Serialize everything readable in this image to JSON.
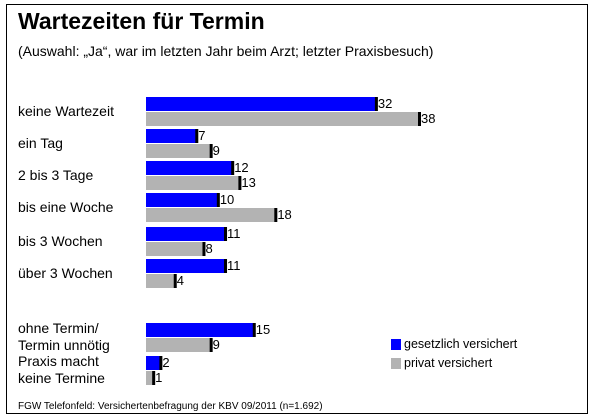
{
  "chart_data": {
    "type": "bar",
    "orientation": "horizontal",
    "title": "Wartezeiten für Termin",
    "subtitle": "(Auswahl: „Ja“, war im letzten Jahr beim Arzt; letzter Praxisbesuch)",
    "source": "FGW Telefonfeld: Versichertenbefragung der KBV 09/2011 (n=1.692)",
    "categories": [
      [
        "keine Wartezeit"
      ],
      [
        "ein Tag"
      ],
      [
        "2 bis 3 Tage"
      ],
      [
        "bis eine Woche"
      ],
      [
        "bis 3 Wochen"
      ],
      [
        "über 3 Wochen"
      ],
      [
        "ohne Termin/",
        "Termin unnötig"
      ],
      [
        "Praxis macht",
        "keine Termine"
      ]
    ],
    "series": [
      {
        "name": "gesetzlich versichert",
        "color": "#0000ff",
        "values": [
          32,
          7,
          12,
          10,
          11,
          11,
          15,
          2
        ]
      },
      {
        "name": "privat versichert",
        "color": "#b3b3b3",
        "values": [
          38,
          9,
          13,
          18,
          8,
          4,
          9,
          1
        ]
      }
    ],
    "xlim": [
      0,
      38
    ],
    "legend_position": "bottom-right",
    "grid": false
  }
}
